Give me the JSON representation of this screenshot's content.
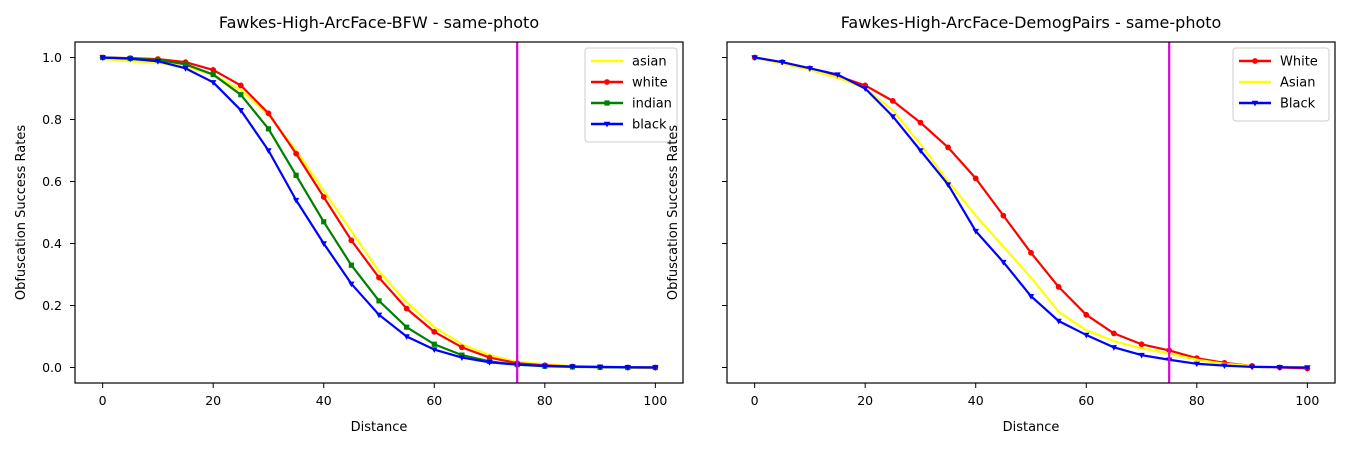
{
  "chart_data": [
    {
      "type": "line",
      "title": "Fawkes-High-ArcFace-BFW - same-photo",
      "xlabel": "Distance",
      "ylabel": "Obfuscation Success Rates",
      "xlim": [
        -5,
        105
      ],
      "ylim": [
        -0.05,
        1.05
      ],
      "x_ticks": [
        "0",
        "20",
        "40",
        "60",
        "80",
        "100"
      ],
      "y_ticks": [
        "0.0",
        "0.2",
        "0.4",
        "0.6",
        "0.8",
        "1.0"
      ],
      "y_tick_labels_visible": true,
      "grid": false,
      "legend_position": "upper-right",
      "threshold_line": {
        "x": 75,
        "color": "#dd00dd"
      },
      "x": [
        0,
        5,
        10,
        15,
        20,
        25,
        30,
        35,
        40,
        45,
        50,
        55,
        60,
        65,
        70,
        75,
        80,
        85,
        90,
        95,
        100
      ],
      "series": [
        {
          "name": "asian",
          "color": "#ffff00",
          "marker": "none",
          "values": [
            0.995,
            0.988,
            0.983,
            0.97,
            0.945,
            0.895,
            0.815,
            0.7,
            0.57,
            0.44,
            0.31,
            0.21,
            0.13,
            0.075,
            0.04,
            0.018,
            0.01,
            0.005,
            0.002,
            0.0,
            -0.002
          ]
        },
        {
          "name": "white",
          "color": "#ff0000",
          "marker": "circle",
          "values": [
            1.0,
            0.998,
            0.995,
            0.985,
            0.96,
            0.91,
            0.82,
            0.69,
            0.55,
            0.41,
            0.29,
            0.19,
            0.115,
            0.065,
            0.032,
            0.014,
            0.007,
            0.003,
            0.001,
            0.0,
            0.0
          ]
        },
        {
          "name": "indian",
          "color": "#008000",
          "marker": "square",
          "values": [
            1.0,
            0.997,
            0.992,
            0.978,
            0.945,
            0.88,
            0.77,
            0.62,
            0.47,
            0.33,
            0.215,
            0.13,
            0.075,
            0.04,
            0.02,
            0.009,
            0.004,
            0.002,
            0.001,
            0.0,
            0.0
          ]
        },
        {
          "name": "black",
          "color": "#0000ff",
          "marker": "triangle-down",
          "values": [
            1.0,
            0.996,
            0.988,
            0.965,
            0.92,
            0.83,
            0.7,
            0.54,
            0.4,
            0.27,
            0.17,
            0.1,
            0.058,
            0.032,
            0.017,
            0.009,
            0.005,
            0.003,
            0.002,
            0.001,
            0.0
          ]
        }
      ]
    },
    {
      "type": "line",
      "title": "Fawkes-High-ArcFace-DemogPairs - same-photo",
      "xlabel": "Distance",
      "ylabel": "Obfuscation Success Rates",
      "xlim": [
        -5,
        105
      ],
      "ylim": [
        -0.05,
        1.05
      ],
      "x_ticks": [
        "0",
        "20",
        "40",
        "60",
        "80",
        "100"
      ],
      "y_ticks": [
        "0.0",
        "0.2",
        "0.4",
        "0.6",
        "0.8",
        "1.0"
      ],
      "y_tick_labels_visible": false,
      "grid": false,
      "legend_position": "upper-right",
      "threshold_line": {
        "x": 75,
        "color": "#dd00dd"
      },
      "x": [
        0,
        5,
        10,
        15,
        20,
        25,
        30,
        35,
        40,
        45,
        50,
        55,
        60,
        65,
        70,
        75,
        80,
        85,
        90,
        95,
        100
      ],
      "series": [
        {
          "name": "White",
          "color": "#ff0000",
          "marker": "circle",
          "values": [
            1.0,
            0.985,
            0.965,
            0.94,
            0.91,
            0.86,
            0.79,
            0.71,
            0.61,
            0.49,
            0.37,
            0.26,
            0.17,
            0.11,
            0.075,
            0.055,
            0.03,
            0.015,
            0.005,
            0.0,
            -0.003
          ]
        },
        {
          "name": "Asian",
          "color": "#ffff00",
          "marker": "none",
          "values": [
            1.0,
            0.98,
            0.96,
            0.935,
            0.9,
            0.83,
            0.72,
            0.6,
            0.49,
            0.39,
            0.29,
            0.18,
            0.12,
            0.085,
            0.062,
            0.045,
            0.025,
            0.012,
            0.005,
            0.002,
            0.0
          ]
        },
        {
          "name": "Black",
          "color": "#0000ff",
          "marker": "triangle-down",
          "values": [
            1.0,
            0.985,
            0.965,
            0.945,
            0.9,
            0.81,
            0.7,
            0.59,
            0.44,
            0.34,
            0.23,
            0.15,
            0.105,
            0.065,
            0.04,
            0.025,
            0.012,
            0.006,
            0.002,
            0.001,
            0.0
          ]
        }
      ]
    }
  ]
}
